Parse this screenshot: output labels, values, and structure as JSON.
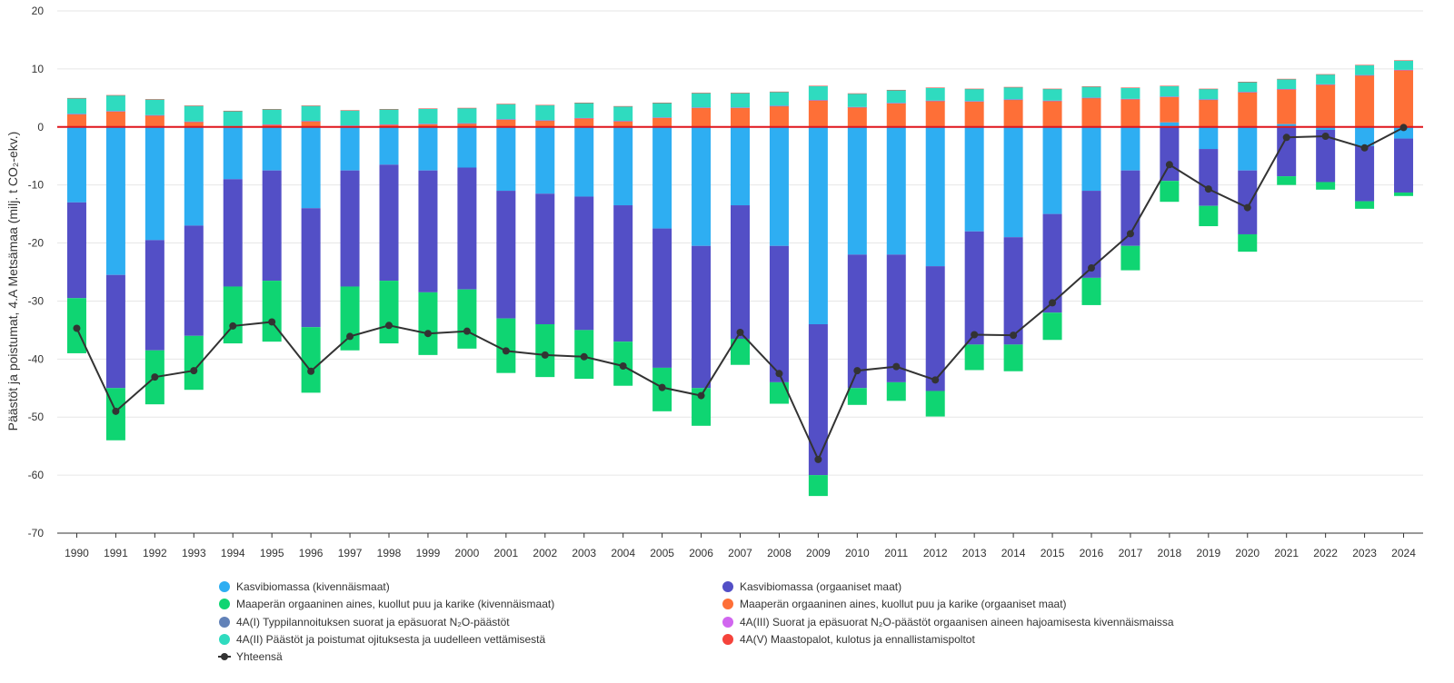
{
  "chart_data": {
    "type": "bar",
    "stacked": true,
    "ylabel": "Päästöt ja poistumat, 4.A Metsämaa (milj. t CO₂-ekv.)",
    "ylim": [
      -70,
      20
    ],
    "yticks": [
      20,
      10,
      0,
      -10,
      -20,
      -30,
      -40,
      -50,
      -60,
      -70
    ],
    "categories": [
      "1990",
      "1991",
      "1992",
      "1993",
      "1994",
      "1995",
      "1996",
      "1997",
      "1998",
      "1999",
      "2000",
      "2001",
      "2002",
      "2003",
      "2004",
      "2005",
      "2006",
      "2007",
      "2008",
      "2009",
      "2010",
      "2011",
      "2012",
      "2013",
      "2014",
      "2015",
      "2016",
      "2017",
      "2018",
      "2019",
      "2020",
      "2021",
      "2022",
      "2023",
      "2024"
    ],
    "series": [
      {
        "name": "Kasvibiomassa (kivennäismaat)",
        "color": "#2eaef2",
        "values": [
          -13.0,
          -25.5,
          -19.5,
          -17.0,
          -9.0,
          -7.5,
          -14.0,
          -7.5,
          -6.5,
          -7.5,
          -7.0,
          -11.0,
          -11.5,
          -12.0,
          -13.5,
          -17.5,
          -20.5,
          -13.5,
          -20.5,
          -34.0,
          -22.0,
          -22.0,
          -24.0,
          -18.0,
          -19.0,
          -15.0,
          -11.0,
          -7.5,
          0.8,
          -3.8,
          -7.5,
          0.5,
          -0.5,
          -3.3,
          -2.0
        ]
      },
      {
        "name": "Kasvibiomassa (orgaaniset maat)",
        "color": "#534fc6",
        "values": [
          -16.5,
          -19.5,
          -19.0,
          -19.0,
          -18.5,
          -19.0,
          -20.5,
          -20.0,
          -20.0,
          -21.0,
          -21.0,
          -22.0,
          -22.5,
          -23.0,
          -23.5,
          -24.0,
          -24.5,
          -23.0,
          -23.5,
          -26.0,
          -23.0,
          -22.0,
          -21.5,
          -19.5,
          -18.5,
          -17.0,
          -15.0,
          -13.0,
          -9.3,
          -9.8,
          -11.0,
          -8.5,
          -9.0,
          -9.5,
          -9.3
        ]
      },
      {
        "name": "Maaperän orgaaninen aines, kuollut puu ja karike (kivennäismaat)",
        "color": "#0fd572",
        "values": [
          -9.5,
          -9.0,
          -9.3,
          -9.3,
          -9.8,
          -10.5,
          -11.3,
          -11.0,
          -10.8,
          -10.8,
          -10.2,
          -9.4,
          -9.1,
          -8.4,
          -7.6,
          -7.5,
          -6.5,
          -4.5,
          -3.7,
          -3.6,
          -2.9,
          -3.2,
          -4.4,
          -4.4,
          -4.6,
          -4.7,
          -4.7,
          -4.2,
          -3.6,
          -3.5,
          -3.0,
          -1.5,
          -1.3,
          -1.3,
          -0.6
        ]
      },
      {
        "name": "Maaperän orgaaninen aines, kuollut puu ja karike (orgaaniset maat)",
        "color": "#fe6f37",
        "values": [
          2.2,
          2.7,
          2.0,
          0.9,
          0.1,
          0.4,
          1.0,
          0.2,
          0.4,
          0.5,
          0.6,
          1.3,
          1.1,
          1.5,
          1.0,
          1.6,
          3.3,
          3.3,
          3.6,
          4.6,
          3.4,
          4.1,
          4.5,
          4.4,
          4.7,
          4.5,
          5.0,
          4.8,
          4.4,
          4.7,
          6.0,
          6.0,
          7.3,
          8.9,
          9.8
        ]
      },
      {
        "name": "4A(I) Typpilannoituksen suorat ja epäsuorat N₂O-päästöt",
        "color": "#6282b8",
        "values": [
          0.02,
          0.02,
          0.02,
          0.02,
          0.02,
          0.02,
          0.02,
          0.02,
          0.02,
          0.02,
          0.02,
          0.02,
          0.02,
          0.02,
          0.02,
          0.02,
          0.02,
          0.02,
          0.02,
          0.02,
          0.02,
          0.02,
          0.02,
          0.02,
          0.02,
          0.02,
          0.02,
          0.02,
          0.02,
          0.02,
          0.02,
          0.02,
          0.02,
          0.02,
          0.02
        ]
      },
      {
        "name": "4A(III) Suorat ja epäsuorat N₂O-päästöt orgaanisen aineen hajoamisesta kivennäismaissa",
        "color": "#d166ef",
        "values": [
          0.02,
          0.02,
          0.02,
          0.02,
          0.02,
          0.02,
          0.02,
          0.02,
          0.02,
          0.02,
          0.02,
          0.02,
          0.02,
          0.02,
          0.02,
          0.02,
          0.02,
          0.02,
          0.02,
          0.02,
          0.02,
          0.02,
          0.02,
          0.02,
          0.02,
          0.02,
          0.02,
          0.02,
          0.02,
          0.02,
          0.02,
          0.02,
          0.02,
          0.02,
          0.02
        ]
      },
      {
        "name": "4A(II) Päästöt ja poistumat ojituksesta ja uudelleen vettämisestä",
        "color": "#2fdbbf",
        "values": [
          2.7,
          2.7,
          2.7,
          2.7,
          2.6,
          2.6,
          2.6,
          2.6,
          2.6,
          2.6,
          2.6,
          2.6,
          2.6,
          2.6,
          2.5,
          2.5,
          2.5,
          2.5,
          2.4,
          2.4,
          2.3,
          2.2,
          2.2,
          2.1,
          2.1,
          2.0,
          1.9,
          1.9,
          1.8,
          1.8,
          1.7,
          1.7,
          1.7,
          1.7,
          1.6
        ]
      },
      {
        "name": "4A(V) Maastopalot, kulotus ja ennallistamispoltot",
        "color": "#f5433b",
        "values": [
          0.05,
          0.05,
          0.05,
          0.05,
          0.05,
          0.05,
          0.05,
          0.05,
          0.05,
          0.05,
          0.05,
          0.05,
          0.05,
          0.05,
          0.05,
          0.05,
          0.05,
          0.05,
          0.05,
          0.05,
          0.05,
          0.05,
          0.05,
          0.05,
          0.05,
          0.05,
          0.05,
          0.05,
          0.05,
          0.05,
          0.05,
          0.05,
          0.05,
          0.05,
          0.05
        ]
      }
    ],
    "total": {
      "name": "Yhteensä",
      "color": "#333333",
      "values": [
        -34.7,
        -49.0,
        -43.1,
        -42.0,
        -34.3,
        -33.6,
        -42.1,
        -36.1,
        -34.2,
        -35.6,
        -35.2,
        -38.6,
        -39.3,
        -39.6,
        -41.2,
        -44.9,
        -46.3,
        -35.4,
        -42.5,
        -57.3,
        -42.0,
        -41.3,
        -43.6,
        -35.8,
        -35.9,
        -30.3,
        -24.3,
        -18.4,
        -6.5,
        -10.7,
        -13.9,
        -1.8,
        -1.6,
        -3.6,
        -0.1
      ]
    }
  }
}
